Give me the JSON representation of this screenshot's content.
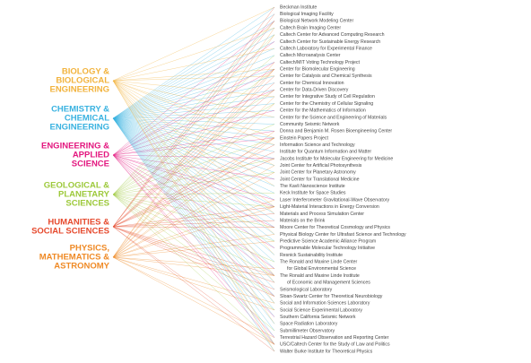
{
  "divisions": [
    {
      "lines": [
        "BIOLOGY &",
        "BIOLOGICAL",
        "ENGINEERING"
      ]
    },
    {
      "lines": [
        "CHEMISTRY &",
        "CHEMICAL",
        "ENGINEERING"
      ]
    },
    {
      "lines": [
        "ENGINEERING &",
        "APPLIED",
        "SCIENCE"
      ]
    },
    {
      "lines": [
        "GEOLOGICAL &",
        "PLANETARY",
        "SCIENCES"
      ]
    },
    {
      "lines": [
        "HUMANITIES &",
        "SOCIAL SCIENCES"
      ]
    },
    {
      "lines": [
        "PHYSICS,",
        "MATHEMATICS &",
        "ASTRONOMY"
      ]
    }
  ],
  "institutes": [
    "Beckman Institute",
    "Biological Imaging Facility",
    "Biological Network Modeling Center",
    "Caltech Brain Imaging Center",
    "Caltech Center for Advanced Computing Research",
    "Caltech Center for Sustainable Energy Research",
    "Caltech Laboratory for Experimental Finance",
    "Caltech Microanalysis Center",
    "Caltech/MIT Voting Technology Project",
    "Center for Biomolecular Engineering",
    "Center for Catalysis and Chemical Synthesis",
    "Center for Chemical Innovation",
    "Center for Data-Driven Discovery",
    "Center for Integrative Study of Cell Regulation",
    "Center for the Chemistry of Cellular Signaling",
    "Center for the Mathematics of Information",
    "Center for the Science and Engineering of Materials",
    "Community Seismic Network",
    "Donna and Benjamin M. Rosen Bioengineering Center",
    "Einstein Papers Project",
    "Information Science and Technology",
    "Institute for Quantum Information and Matter",
    "Jacobs Institute for Molecular Engineering for Medicine",
    "Joint Center for Artificial Photosynthesis",
    "Joint Center for Planetary Astronomy",
    "Joint Center for Translational Medicine",
    "The Kavli Nanoscience Institute",
    "Keck Institute for Space Studies",
    "Laser Interferometer Gravitational-Wave Observatory",
    "Light-Material Interactions in Energy Conversion",
    "Materials and Process Simulation Center",
    "Materials on the Brink",
    "Moore Center for Theoretical Cosmology and Physics",
    "Physical Biology Center for Ultrafast Science and Technology",
    "Predictive Science Academic Alliance Program",
    "Programmable Molecular Technology Initiative",
    "Resnick Sustainability Institute",
    "The Ronald and Maxine Linde Center",
    "for Global Environmental Science",
    "The Ronald and Maxine Linde Institute",
    "of Economic and Management Sciences",
    "Seismological Laboratory",
    "Sloan-Swartz Center for Theoretical Neurobiology",
    "Social and Information Sciences Laboratory",
    "Social Science Experimental Laboratory",
    "Southern California Seismic Network",
    "Space Radiation Laboratory",
    "Submillimeter Observatory",
    "Terrestrial Hazard Observation and Reporting Center",
    "USC/Caltech Center for the Study of Law and Politics",
    "Walter Burke Institute for Theoretical Physics"
  ]
}
